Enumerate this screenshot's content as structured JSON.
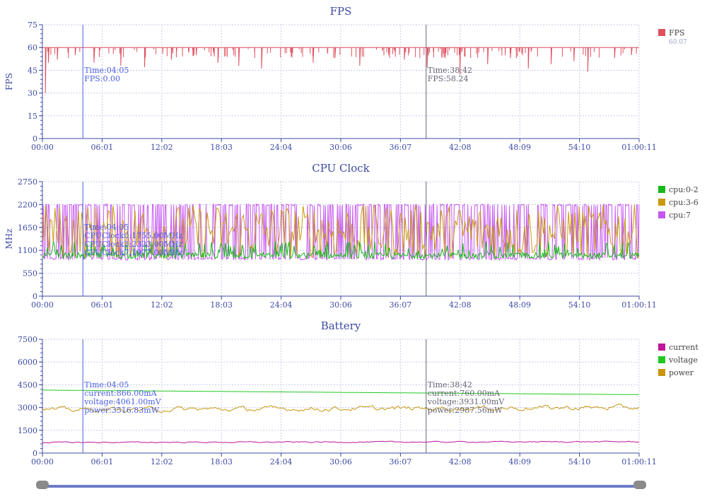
{
  "time_ticks": [
    "00:00",
    "06:01",
    "12:02",
    "18:03",
    "24:04",
    "30:06",
    "36:07",
    "42:08",
    "48:09",
    "54:10",
    "01:00:11"
  ],
  "cursor_a": {
    "time": "Time:04:05"
  },
  "cursor_b": {
    "time": "Time:38:42"
  },
  "colors": {
    "axis": "#3d4aa6",
    "grid": "#c7cbe6",
    "cursor_a": "#4a5fe0",
    "cursor_b": "#666677",
    "fps": "#e0505f",
    "cpu02": "#18b818",
    "cpu36": "#c99a10",
    "cpu7": "#c557f0",
    "current": "#c0149a",
    "voltage": "#22c822",
    "power": "#c8960c"
  },
  "chart_data": [
    {
      "type": "line",
      "title": "FPS",
      "ylabel": "FPS",
      "ylim": [
        0,
        75
      ],
      "yticks": [
        "0",
        "15",
        "30",
        "45",
        "60",
        "75"
      ],
      "grid": true,
      "legend_position": "right",
      "series": [
        {
          "name": "FPS",
          "summary": "60.07",
          "baseline": 60,
          "dips": [
            [
              0.3,
              30
            ],
            [
              0.6,
              50
            ],
            [
              1.5,
              52
            ],
            [
              3.3,
              55
            ],
            [
              5.2,
              50
            ],
            [
              7.9,
              48
            ],
            [
              10.3,
              47
            ],
            [
              13.0,
              52
            ],
            [
              15.5,
              55
            ],
            [
              17.7,
              50
            ],
            [
              19.8,
              48
            ],
            [
              22.1,
              46
            ],
            [
              25.1,
              54
            ],
            [
              27.3,
              50
            ],
            [
              29.5,
              53
            ],
            [
              32.0,
              48
            ],
            [
              34.9,
              55
            ],
            [
              36.5,
              52
            ],
            [
              38.8,
              47
            ],
            [
              40.6,
              53
            ],
            [
              42.1,
              42
            ],
            [
              44.9,
              49
            ],
            [
              47.2,
              53
            ],
            [
              49.0,
              46
            ],
            [
              51.3,
              49
            ],
            [
              53.6,
              51
            ],
            [
              55.0,
              44
            ],
            [
              57.7,
              53
            ],
            [
              59.4,
              55
            ]
          ]
        }
      ],
      "cursor_a": {
        "values": [
          "FPS:0.00"
        ]
      },
      "cursor_b": {
        "values": [
          "FPS:58.24"
        ]
      }
    },
    {
      "type": "line",
      "title": "CPU Clock",
      "ylabel": "MHz",
      "ylim": [
        0,
        2750
      ],
      "yticks": [
        "0",
        "550",
        "1100",
        "1650",
        "2200",
        "2750"
      ],
      "grid": true,
      "legend_position": "right",
      "series": [
        {
          "name": "cpu:0-2",
          "low": 900,
          "high": 1320
        },
        {
          "name": "cpu:3-6",
          "low": 900,
          "high": 2200
        },
        {
          "name": "cpu:7",
          "low": 870,
          "high": 2210
        }
      ],
      "cursor_a": {
        "values": [
          "CPUClock0:1755.00MHz",
          "CPUClock3:2323.00MHz",
          "CPUClock7:1977.00MHz"
        ]
      },
      "cursor_b": {
        "values": []
      }
    },
    {
      "type": "line",
      "title": "Battery",
      "ylabel": "",
      "ylim": [
        0,
        7500
      ],
      "yticks": [
        "0",
        "1500",
        "3000",
        "4500",
        "6000",
        "7500"
      ],
      "grid": true,
      "legend_position": "right",
      "series": [
        {
          "name": "current",
          "start": 700,
          "end": 750,
          "noise": 60
        },
        {
          "name": "voltage",
          "start": 4150,
          "end": 3850,
          "noise": 0
        },
        {
          "name": "power",
          "start": 2850,
          "end": 3000,
          "noise": 250
        }
      ],
      "cursor_a": {
        "values": [
          "current:866.00mA",
          "voltage:4061.00mV",
          "power:3516.83mW"
        ]
      },
      "cursor_b": {
        "values": [
          "current:760.00mA",
          "voltage:3931.00mV",
          "power:2987.56mW"
        ]
      }
    }
  ]
}
